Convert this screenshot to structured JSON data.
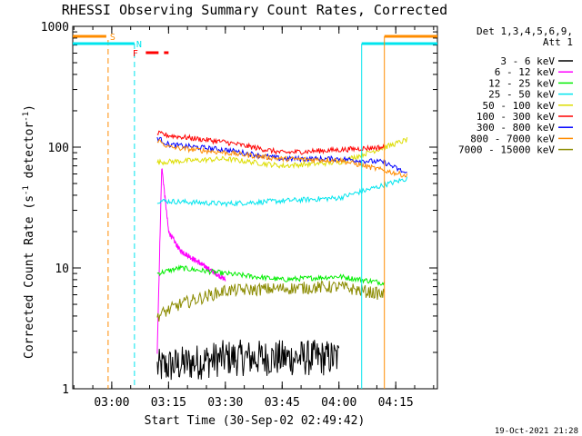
{
  "chart_data": {
    "type": "line",
    "title": "RHESSI Observing Summary Count Rates, Corrected",
    "xlabel": "Start Time (30-Sep-02 02:49:42)",
    "ylabel": "Corrected Count Rate (s-1 detector-1)",
    "ylabel_parts": {
      "pre": "Corrected Count Rate (s",
      "sup1": "-1",
      "mid": " detector",
      "sup2": "-1",
      "post": ")"
    },
    "y_scale": "log",
    "ylim": [
      1,
      1000
    ],
    "y_ticks": [
      "1",
      "10",
      "100",
      "1000"
    ],
    "xlim": [
      "02:49:42",
      "04:26:00"
    ],
    "x_ticks": [
      "03:00",
      "03:15",
      "03:30",
      "03:45",
      "04:00",
      "04:15"
    ],
    "legend_title": [
      "Det 1,3,4,5,6,9,",
      "Att 1"
    ],
    "legend_position": "right",
    "footer_date": "19-Oct-2021 21:28",
    "flags": [
      {
        "label": "S",
        "color": "#ff8c00"
      },
      {
        "label": "N",
        "color": "#00e5ee"
      },
      {
        "label": "F",
        "color": "#ff0000"
      }
    ],
    "series": [
      {
        "name": "3 - 6 keV",
        "color": "#000000"
      },
      {
        "name": "6 - 12 keV",
        "color": "#ff00ff"
      },
      {
        "name": "12 - 25 keV",
        "color": "#00ee00"
      },
      {
        "name": "25 - 50 keV",
        "color": "#00e5ee"
      },
      {
        "name": "50 - 100 keV",
        "color": "#dddd00"
      },
      {
        "name": "100 - 300 keV",
        "color": "#ff0000"
      },
      {
        "name": "300 - 800 keV",
        "color": "#0000ff"
      },
      {
        "name": "800 - 7000 keV",
        "color": "#ff8c00"
      },
      {
        "name": "7000 - 15000 keV",
        "color": "#8b8b00"
      }
    ],
    "approx_levels": {
      "300 - 800 keV": [
        [
          3.2,
          120
        ],
        [
          3.25,
          105
        ],
        [
          3.5,
          95
        ],
        [
          3.75,
          80
        ],
        [
          4.0,
          80
        ],
        [
          4.2,
          75
        ],
        [
          4.3,
          60
        ]
      ],
      "100 - 300 keV": [
        [
          3.2,
          130
        ],
        [
          3.25,
          125
        ],
        [
          3.5,
          110
        ],
        [
          3.75,
          90
        ],
        [
          4.0,
          95
        ],
        [
          4.2,
          100
        ]
      ],
      "800 - 7000 keV": [
        [
          3.2,
          115
        ],
        [
          3.25,
          100
        ],
        [
          3.5,
          90
        ],
        [
          3.75,
          80
        ],
        [
          4.0,
          78
        ],
        [
          4.3,
          58
        ]
      ],
      "50 - 100 keV": [
        [
          3.2,
          75
        ],
        [
          3.5,
          80
        ],
        [
          3.75,
          70
        ],
        [
          4.0,
          75
        ],
        [
          4.3,
          115
        ]
      ],
      "25 - 50 keV": [
        [
          3.2,
          36
        ],
        [
          3.5,
          34
        ],
        [
          4.0,
          38
        ],
        [
          4.3,
          55
        ]
      ],
      "12 - 25 keV": [
        [
          3.2,
          9
        ],
        [
          3.3,
          10
        ],
        [
          3.5,
          9
        ],
        [
          3.75,
          8
        ],
        [
          4.0,
          8.5
        ],
        [
          4.2,
          7.5
        ]
      ],
      "7000 - 15000 keV": [
        [
          3.2,
          4
        ],
        [
          3.3,
          5
        ],
        [
          3.5,
          6.5
        ],
        [
          4.0,
          7
        ],
        [
          4.2,
          6
        ]
      ],
      "6 - 12 keV": [
        [
          3.2,
          2
        ],
        [
          3.22,
          70
        ],
        [
          3.25,
          20
        ],
        [
          3.3,
          14
        ],
        [
          3.5,
          8
        ]
      ],
      "3 - 6 keV": [
        [
          3.2,
          1.5
        ],
        [
          3.5,
          1.8
        ],
        [
          4.0,
          1.8
        ]
      ]
    }
  }
}
